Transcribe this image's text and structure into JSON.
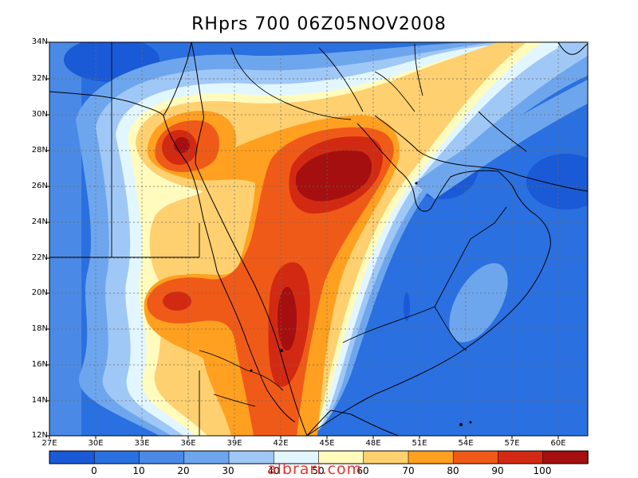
{
  "map": {
    "title": "RHprs 700 06Z05NOV2008",
    "lat_ticks": [
      "34N",
      "32N",
      "30N",
      "28N",
      "26N",
      "24N",
      "22N",
      "20N",
      "18N",
      "16N",
      "14N",
      "12N"
    ],
    "lon_ticks": [
      "27E",
      "30E",
      "33E",
      "36E",
      "39E",
      "42E",
      "45E",
      "48E",
      "51E",
      "54E",
      "57E",
      "60E"
    ]
  },
  "colorbar": {
    "labels": [
      "0",
      "10",
      "20",
      "30",
      "40",
      "50",
      "60",
      "70",
      "80",
      "90",
      "100"
    ],
    "colors": [
      "#1a5ad6",
      "#2a70e0",
      "#4a8ae6",
      "#6ea6ee",
      "#a0c8f6",
      "#e2f6ff",
      "#fffbbd",
      "#ffd070",
      "#ffa020",
      "#f05a18",
      "#d22a12",
      "#a50f0f"
    ]
  },
  "watermark": "albrari.com",
  "colors": {
    "rh_0_10": "#1a5ad6",
    "rh_10_20": "#2a70e0",
    "rh_20_30": "#4a8ae6",
    "rh_30_40": "#6ea6ee",
    "rh_40_50": "#a0c8f6",
    "rh_50_60": "#e2f6ff",
    "rh_60_70": "#fffbbd",
    "rh_70_80": "#ffd070",
    "rh_80_90": "#ffa020",
    "rh_90_95": "#f05a18",
    "rh_95_100": "#d22a12",
    "rh_100": "#a50f0f"
  }
}
